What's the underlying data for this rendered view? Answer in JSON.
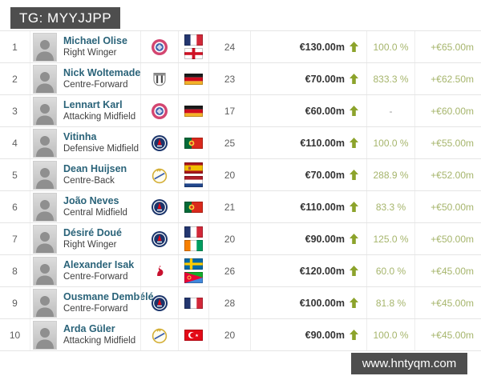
{
  "header": {
    "tag_label": "TG: MYYJJPP"
  },
  "watermark": {
    "text": "www.hntyqm.com"
  },
  "colors": {
    "badge_bg": "#4e4e4e",
    "link": "#2a6379",
    "value_text": "#333333",
    "trend_green": "#8ca32b",
    "light_green": "#a6b56c",
    "border": "#e4e4e4"
  },
  "table": {
    "columns": [
      "rank",
      "player",
      "club",
      "nationality",
      "age",
      "market_value",
      "percent_change",
      "value_change"
    ],
    "rows": [
      {
        "rank": "1",
        "name": "Michael Olise",
        "position": "Right Winger",
        "club": "bayern",
        "club_name": "Bayern Munich",
        "flags": [
          "france",
          "england"
        ],
        "age": "24",
        "value": "€130.00m",
        "trend": "up",
        "percent": "100.0 %",
        "change": "+€65.00m"
      },
      {
        "rank": "2",
        "name": "Nick Woltemade",
        "position": "Centre-Forward",
        "club": "newcastle",
        "club_name": "Newcastle United",
        "flags": [
          "germany"
        ],
        "age": "23",
        "value": "€70.00m",
        "trend": "up",
        "percent": "833.3 %",
        "change": "+€62.50m"
      },
      {
        "rank": "3",
        "name": "Lennart Karl",
        "position": "Attacking Midfield",
        "club": "bayern",
        "club_name": "Bayern Munich",
        "flags": [
          "germany"
        ],
        "age": "17",
        "value": "€60.00m",
        "trend": "up",
        "percent": "-",
        "change": "+€60.00m"
      },
      {
        "rank": "4",
        "name": "Vitinha",
        "position": "Defensive Midfield",
        "club": "psg",
        "club_name": "Paris Saint-Germain",
        "flags": [
          "portugal"
        ],
        "age": "25",
        "value": "€110.00m",
        "trend": "up",
        "percent": "100.0 %",
        "change": "+€55.00m"
      },
      {
        "rank": "5",
        "name": "Dean Huijsen",
        "position": "Centre-Back",
        "club": "real-madrid",
        "club_name": "Real Madrid",
        "flags": [
          "spain",
          "netherlands"
        ],
        "age": "20",
        "value": "€70.00m",
        "trend": "up",
        "percent": "288.9 %",
        "change": "+€52.00m"
      },
      {
        "rank": "6",
        "name": "João Neves",
        "position": "Central Midfield",
        "club": "psg",
        "club_name": "Paris Saint-Germain",
        "flags": [
          "portugal"
        ],
        "age": "21",
        "value": "€110.00m",
        "trend": "up",
        "percent": "83.3 %",
        "change": "+€50.00m"
      },
      {
        "rank": "7",
        "name": "Désiré Doué",
        "position": "Right Winger",
        "club": "psg",
        "club_name": "Paris Saint-Germain",
        "flags": [
          "france",
          "ivory-coast"
        ],
        "age": "20",
        "value": "€90.00m",
        "trend": "up",
        "percent": "125.0 %",
        "change": "+€50.00m"
      },
      {
        "rank": "8",
        "name": "Alexander Isak",
        "position": "Centre-Forward",
        "club": "liverpool",
        "club_name": "Liverpool FC",
        "flags": [
          "sweden",
          "eritrea"
        ],
        "age": "26",
        "value": "€120.00m",
        "trend": "up",
        "percent": "60.0 %",
        "change": "+€45.00m"
      },
      {
        "rank": "9",
        "name": "Ousmane Dembélé",
        "position": "Centre-Forward",
        "club": "psg",
        "club_name": "Paris Saint-Germain",
        "flags": [
          "france"
        ],
        "age": "28",
        "value": "€100.00m",
        "trend": "up",
        "percent": "81.8 %",
        "change": "+€45.00m"
      },
      {
        "rank": "10",
        "name": "Arda Güler",
        "position": "Attacking Midfield",
        "club": "real-madrid",
        "club_name": "Real Madrid",
        "flags": [
          "turkey"
        ],
        "age": "20",
        "value": "€90.00m",
        "trend": "up",
        "percent": "100.0 %",
        "change": "+€45.00m"
      }
    ]
  }
}
